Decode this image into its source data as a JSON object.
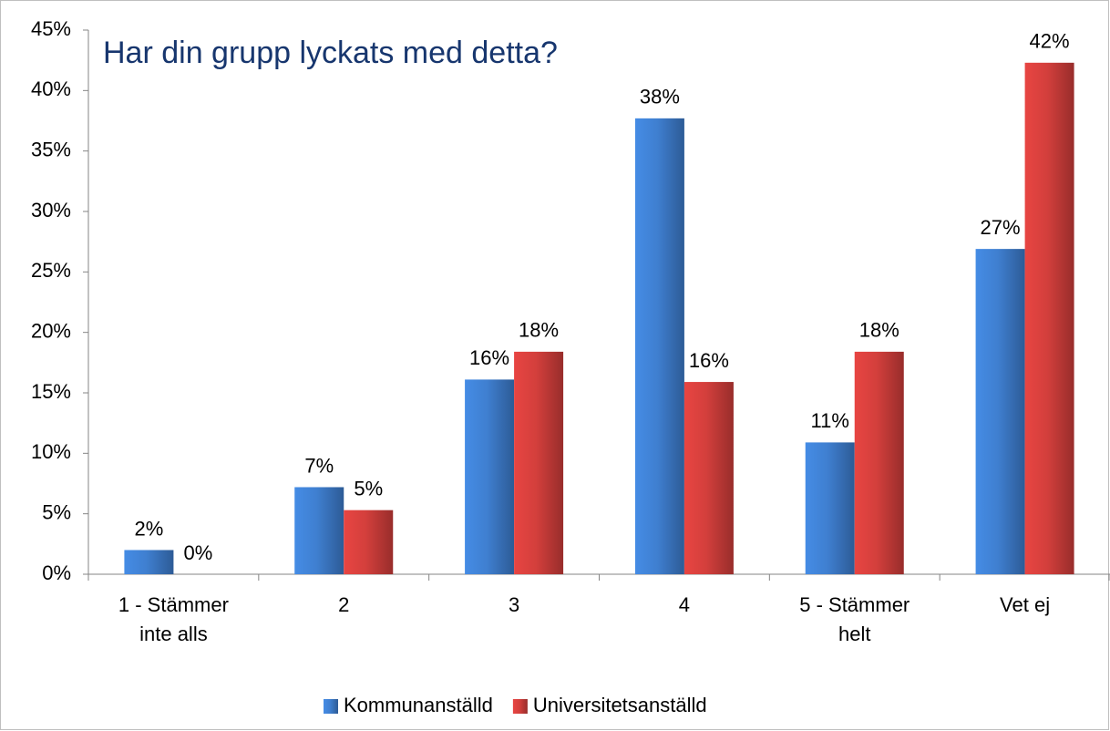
{
  "chart_data": {
    "type": "bar",
    "title": "Har din grupp lyckats med detta?",
    "categories": [
      "1 - Stämmer inte alls",
      "2",
      "3",
      "4",
      "5 - Stämmer helt",
      "Vet ej"
    ],
    "series": [
      {
        "name": "Kommunanställd",
        "color": "#3f7fd0",
        "values": [
          2,
          7.2,
          16.1,
          37.7,
          10.9,
          26.9
        ],
        "value_labels": [
          "2%",
          "7%",
          "16%",
          "38%",
          "11%",
          "27%"
        ]
      },
      {
        "name": "Universitetsanställd",
        "color": "#d33f3c",
        "values": [
          0,
          5.3,
          18.4,
          15.9,
          18.4,
          42.3
        ],
        "value_labels": [
          "0%",
          "5%",
          "18%",
          "16%",
          "18%",
          "42%"
        ]
      }
    ],
    "ylim": [
      0,
      45
    ],
    "yticks": [
      {
        "value": 0,
        "label": "0%"
      },
      {
        "value": 5,
        "label": "5%"
      },
      {
        "value": 10,
        "label": "10%"
      },
      {
        "value": 15,
        "label": "15%"
      },
      {
        "value": 20,
        "label": "20%"
      },
      {
        "value": 25,
        "label": "25%"
      },
      {
        "value": 30,
        "label": "30%"
      },
      {
        "value": 35,
        "label": "35%"
      },
      {
        "value": 40,
        "label": "40%"
      },
      {
        "value": 45,
        "label": "45%"
      }
    ],
    "legend": "bottom"
  }
}
